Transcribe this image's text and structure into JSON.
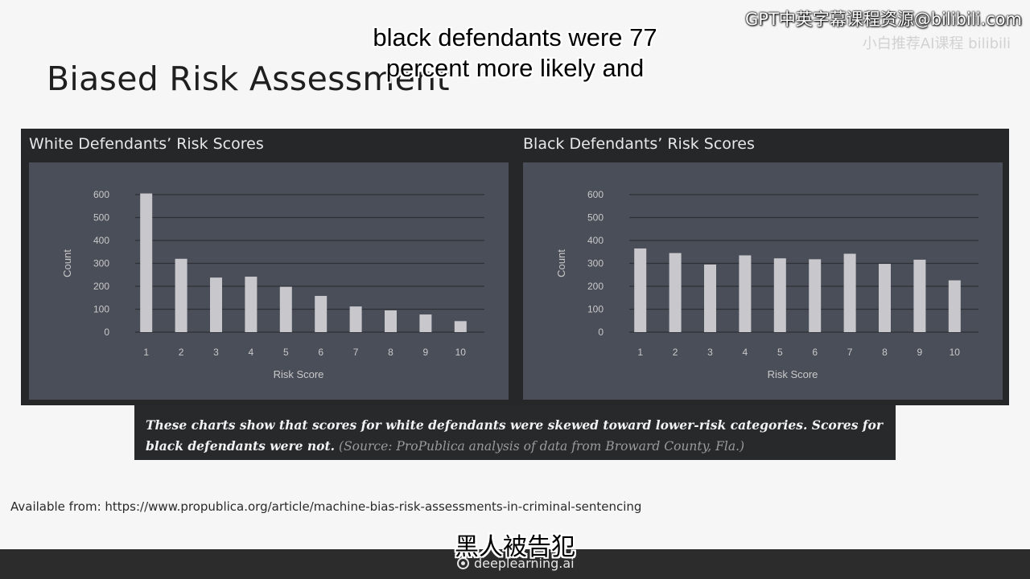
{
  "slide": {
    "title": "Biased Risk Assessment",
    "source_line": "Available from: https://www.propublica.org/article/machine-bias-risk-assessments-in-criminal-sentencing"
  },
  "overlay": {
    "watermark": "GPT中英字幕课程资源@bilibili.com",
    "watermark_faint": "小白推荐AI课程 bilibili",
    "subtitle_en_line1": "black defendants were 77",
    "subtitle_en_line2": "percent more likely and",
    "subtitle_zh": "黑人被告犯",
    "brand": "deeplearning.ai"
  },
  "caption": {
    "main": "These charts show that scores for white defendants were skewed toward lower-risk categories. Scores for black defendants were not.",
    "source": "(Source: ProPublica analysis of data from Broward County, Fla.)"
  },
  "colors": {
    "bar": "#c7c7cc",
    "plot_bg": "#4a4e58",
    "figure_bg": "#252729",
    "grid": "#2e3036",
    "text": "#c9c9c9"
  },
  "chart_data": [
    {
      "type": "bar",
      "title": "White Defendants’ Risk Scores",
      "xlabel": "Risk Score",
      "ylabel": "Count",
      "categories": [
        "1",
        "2",
        "3",
        "4",
        "5",
        "6",
        "7",
        "8",
        "9",
        "10"
      ],
      "values": [
        605,
        320,
        238,
        242,
        198,
        158,
        112,
        95,
        77,
        48
      ],
      "yticks": [
        "0",
        "100",
        "200",
        "300",
        "400",
        "500",
        "600"
      ],
      "ylim": [
        0,
        600
      ],
      "grid": true
    },
    {
      "type": "bar",
      "title": "Black Defendants’ Risk Scores",
      "xlabel": "Risk Score",
      "ylabel": "Count",
      "categories": [
        "1",
        "2",
        "3",
        "4",
        "5",
        "6",
        "7",
        "8",
        "9",
        "10"
      ],
      "values": [
        365,
        345,
        295,
        335,
        322,
        318,
        342,
        298,
        316,
        226
      ],
      "yticks": [
        "0",
        "100",
        "200",
        "300",
        "400",
        "500",
        "600"
      ],
      "ylim": [
        0,
        600
      ],
      "grid": true
    }
  ]
}
